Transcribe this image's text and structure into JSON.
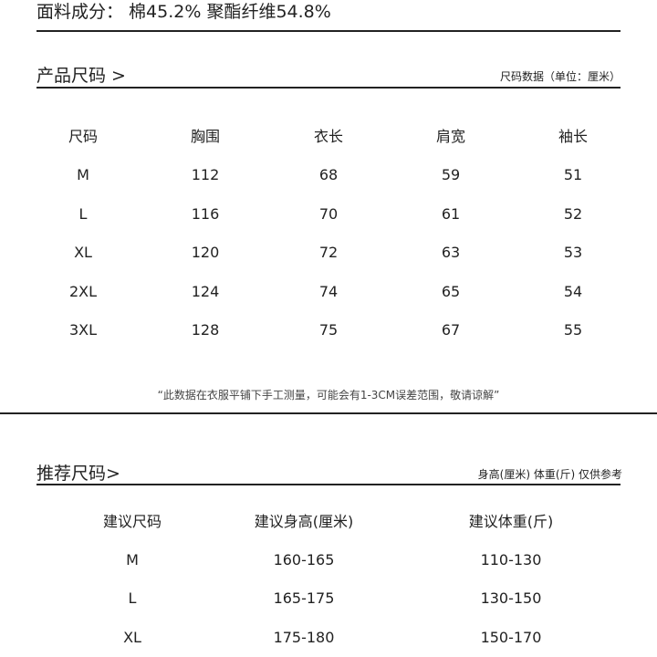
{
  "fabric": "面料成分： 棉45.2%  聚酯纤维54.8%",
  "product_size": {
    "title": "产品尺码 >",
    "unit": "尺码数据（单位：厘米）",
    "headers": [
      "尺码",
      "胸围",
      "衣长",
      "肩宽",
      "袖长"
    ],
    "rows": [
      [
        "M",
        "112",
        "68",
        "59",
        "51"
      ],
      [
        "L",
        "116",
        "70",
        "61",
        "52"
      ],
      [
        "XL",
        "120",
        "72",
        "63",
        "53"
      ],
      [
        "2XL",
        "124",
        "74",
        "65",
        "54"
      ],
      [
        "3XL",
        "128",
        "75",
        "67",
        "55"
      ]
    ],
    "note": "“此数据在衣服平铺下手工测量，可能会有1-3CM误差范围，敬请谅解”"
  },
  "recommended": {
    "title": "推荐尺码>",
    "subtitle": "身高(厘米) 体重(斤) 仅供参考",
    "headers": [
      "建议尺码",
      "建议身高(厘米)",
      "建议体重(斤)"
    ],
    "rows": [
      [
        "M",
        "160-165",
        "110-130"
      ],
      [
        "L",
        "165-175",
        "130-150"
      ],
      [
        "XL",
        "175-180",
        "150-170"
      ]
    ]
  }
}
